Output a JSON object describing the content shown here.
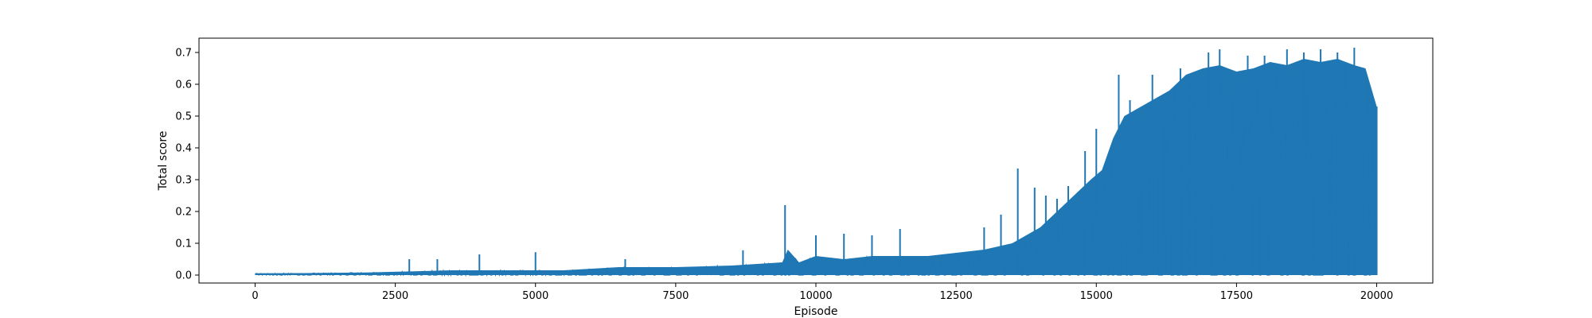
{
  "chart_data": {
    "type": "line",
    "title": "",
    "xlabel": "Episode",
    "ylabel": "Total score",
    "xlim": [
      -1000,
      21000
    ],
    "ylim": [
      -0.025,
      0.745
    ],
    "x_ticks": [
      0,
      2500,
      5000,
      7500,
      10000,
      12500,
      15000,
      17500,
      20000
    ],
    "x_tick_labels": [
      "0",
      "2500",
      "5000",
      "7500",
      "10000",
      "12500",
      "15000",
      "17500",
      "20000"
    ],
    "y_ticks": [
      0.0,
      0.1,
      0.2,
      0.3,
      0.4,
      0.5,
      0.6,
      0.7
    ],
    "y_tick_labels": [
      "0.0",
      "0.1",
      "0.2",
      "0.3",
      "0.4",
      "0.5",
      "0.6",
      "0.7"
    ],
    "grid": false,
    "legend": "none",
    "series": [
      {
        "color": "#1f77b4",
        "x": [
          0,
          2000,
          3500,
          5500,
          6500,
          7500,
          8500,
          9400,
          9500,
          9700,
          10000,
          10500,
          11000,
          11500,
          12000,
          12500,
          13000,
          13500,
          13700,
          14000,
          14300,
          14600,
          14900,
          15100,
          15300,
          15500,
          15700,
          16000,
          16300,
          16600,
          16900,
          17200,
          17500,
          17800,
          18100,
          18400,
          18700,
          19000,
          19300,
          19600,
          19800,
          20000
        ],
        "envelope_low": [
          0.0,
          0.0,
          0.0,
          0.0,
          0.0,
          0.0,
          0.0,
          0.0,
          0.0,
          0.0,
          0.0,
          0.0,
          0.0,
          0.0,
          0.0,
          0.0,
          0.0,
          0.0,
          0.0,
          0.0,
          0.0,
          0.0,
          0.0,
          0.0,
          0.0,
          0.0,
          0.0,
          0.0,
          0.0,
          0.0,
          0.0,
          0.0,
          0.0,
          0.0,
          0.0,
          0.0,
          0.0,
          0.0,
          0.0,
          0.0,
          0.0,
          0.0
        ],
        "envelope_high": [
          0.005,
          0.008,
          0.015,
          0.015,
          0.025,
          0.025,
          0.03,
          0.04,
          0.08,
          0.04,
          0.06,
          0.05,
          0.06,
          0.06,
          0.06,
          0.07,
          0.08,
          0.1,
          0.12,
          0.15,
          0.2,
          0.25,
          0.3,
          0.33,
          0.43,
          0.5,
          0.52,
          0.55,
          0.58,
          0.63,
          0.65,
          0.66,
          0.64,
          0.65,
          0.67,
          0.66,
          0.68,
          0.67,
          0.68,
          0.66,
          0.65,
          0.53
        ],
        "spikes": [
          [
            2750,
            0.05
          ],
          [
            3250,
            0.05
          ],
          [
            4000,
            0.065
          ],
          [
            5000,
            0.072
          ],
          [
            6600,
            0.05
          ],
          [
            8700,
            0.078
          ],
          [
            9450,
            0.22
          ],
          [
            10000,
            0.125
          ],
          [
            10500,
            0.13
          ],
          [
            11000,
            0.125
          ],
          [
            11500,
            0.145
          ],
          [
            13000,
            0.15
          ],
          [
            13300,
            0.19
          ],
          [
            13600,
            0.335
          ],
          [
            13900,
            0.275
          ],
          [
            14100,
            0.25
          ],
          [
            14300,
            0.24
          ],
          [
            14500,
            0.28
          ],
          [
            14800,
            0.39
          ],
          [
            15000,
            0.46
          ],
          [
            15400,
            0.63
          ],
          [
            15600,
            0.55
          ],
          [
            16000,
            0.63
          ],
          [
            16500,
            0.65
          ],
          [
            17000,
            0.7
          ],
          [
            17200,
            0.71
          ],
          [
            17700,
            0.69
          ],
          [
            18000,
            0.69
          ],
          [
            18400,
            0.71
          ],
          [
            18700,
            0.7
          ],
          [
            19000,
            0.71
          ],
          [
            19300,
            0.7
          ],
          [
            19600,
            0.715
          ]
        ]
      }
    ]
  }
}
